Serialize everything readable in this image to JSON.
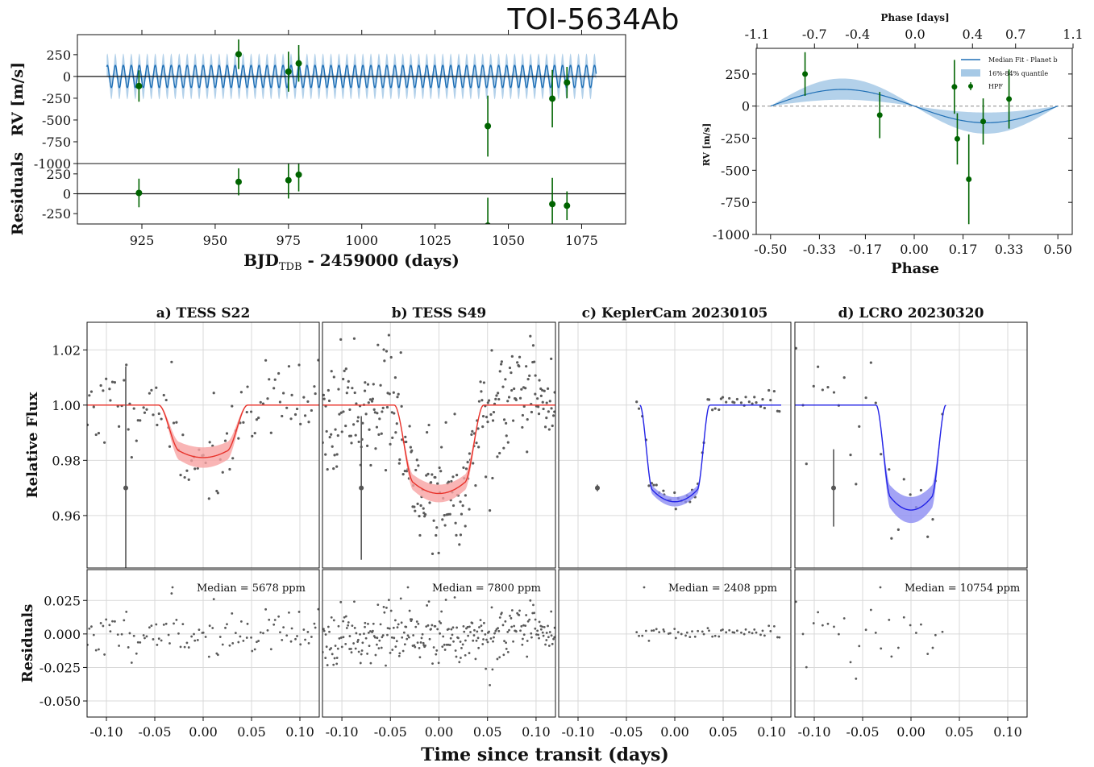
{
  "figure": {
    "title": "TOI-5634Ab"
  },
  "colors": {
    "rv_fit": "#1f6fb5",
    "rv_band": "#a6c9e6",
    "hpf_points": "#006400",
    "tess_fit": "#e8322a",
    "tess_band": "#f7a3a3",
    "ground_fit": "#2222e6",
    "ground_band": "#8c8cf2",
    "phot_points": "#5a5a5a",
    "grid": "#d9d9d9",
    "zero_dash": "#888888"
  },
  "chart_data": [
    {
      "id": "rv_timeseries",
      "type": "scatter",
      "ylabel": "RV [m/s]",
      "xlabel": "BJD_TDB - 2459000 (days)",
      "xlim": [
        903,
        1090
      ],
      "ylim": [
        -1000,
        480
      ],
      "x_ticks": [
        925,
        950,
        975,
        1000,
        1025,
        1050,
        1075
      ],
      "y_ticks": [
        250,
        0,
        -250,
        -500,
        -750,
        -1000
      ],
      "model": {
        "name": "",
        "x_range": [
          913,
          1080
        ],
        "period_days": 2.724,
        "semi_amplitude": 128,
        "band_half_width": 95
      },
      "points": [
        {
          "x": 924,
          "y": -110,
          "err": 180
        },
        {
          "x": 958,
          "y": 255,
          "err": 170
        },
        {
          "x": 975,
          "y": 55,
          "err": 230
        },
        {
          "x": 978.5,
          "y": 150,
          "err": 210
        },
        {
          "x": 1043,
          "y": -570,
          "err": 350
        },
        {
          "x": 1065,
          "y": -255,
          "err": 330
        },
        {
          "x": 1070,
          "y": -70,
          "err": 180
        }
      ]
    },
    {
      "id": "rv_residuals",
      "type": "scatter",
      "ylabel": "Residuals",
      "xlim": [
        903,
        1090
      ],
      "ylim": [
        -380,
        380
      ],
      "x_ticks": [
        925,
        950,
        975,
        1000,
        1025,
        1050,
        1075
      ],
      "y_ticks": [
        250,
        0,
        -250
      ],
      "points": [
        {
          "x": 924,
          "y": 10,
          "err": 180
        },
        {
          "x": 958,
          "y": 150,
          "err": 170
        },
        {
          "x": 975,
          "y": 170,
          "err": 230
        },
        {
          "x": 978.5,
          "y": 240,
          "err": 210
        },
        {
          "x": 1043,
          "y": -400,
          "err": 350
        },
        {
          "x": 1065,
          "y": -130,
          "err": 330
        },
        {
          "x": 1070,
          "y": -150,
          "err": 180
        }
      ]
    },
    {
      "id": "rv_phase",
      "type": "scatter",
      "ylabel": "RV [m/s]",
      "xlabel": "Phase",
      "top_xlabel": "Phase [days]",
      "xlim": [
        -0.55,
        0.55
      ],
      "ylim": [
        -1000,
        450
      ],
      "x_ticks": [
        -0.5,
        -0.33,
        -0.17,
        0.0,
        0.17,
        0.33,
        0.5
      ],
      "x_tick_labels": [
        "-0.50",
        "-0.33",
        "-0.17",
        "0.00",
        "0.17",
        "0.33",
        "0.50"
      ],
      "top_ticks": [
        -1.1,
        -0.7,
        -0.4,
        0.0,
        0.4,
        0.7,
        1.1
      ],
      "top_tick_labels": [
        "-1.1",
        "-0.7",
        "-0.4",
        "0.0",
        "0.4",
        "0.7",
        "1.1"
      ],
      "y_ticks": [
        250,
        0,
        -250,
        -500,
        -750,
        -1000
      ],
      "legend": [
        "Median Fit - Planet b",
        "16%-84% quantile",
        "HPF"
      ],
      "legend_position": "top-right",
      "model": {
        "semi_amplitude": 130,
        "band_upper_amplitude": 215,
        "band_lower_amplitude": 50
      },
      "points": [
        {
          "x": -0.38,
          "y": 250,
          "err": 170
        },
        {
          "x": -0.12,
          "y": -70,
          "err": 180
        },
        {
          "x": 0.14,
          "y": 150,
          "err": 210
        },
        {
          "x": 0.15,
          "y": -255,
          "err": 200
        },
        {
          "x": 0.19,
          "y": -570,
          "err": 350
        },
        {
          "x": 0.24,
          "y": -120,
          "err": 180
        },
        {
          "x": 0.33,
          "y": 55,
          "err": 230
        }
      ]
    },
    {
      "id": "transit_panels",
      "type": "scatter",
      "ylabel_top": "Relative Flux",
      "ylabel_bottom": "Residuals",
      "xlabel": "Time since transit (days)",
      "xlim": [
        -0.12,
        0.12
      ],
      "x_ticks": [
        -0.1,
        -0.05,
        0.0,
        0.05,
        0.1
      ],
      "x_tick_labels": [
        "-0.10",
        "-0.05",
        "0.00",
        "0.05",
        "0.10"
      ],
      "flux_ylim": [
        0.941,
        1.03
      ],
      "flux_ticks": [
        1.02,
        1.0,
        0.98,
        0.96
      ],
      "flux_tick_labels": [
        "1.02",
        "1.00",
        "0.98",
        "0.96"
      ],
      "resid_ylim": [
        -0.062,
        0.048
      ],
      "resid_ticks": [
        0.025,
        0.0,
        -0.025,
        -0.05
      ],
      "resid_tick_labels": [
        "0.025",
        "0.000",
        "-0.025",
        "-0.050"
      ],
      "panels": [
        {
          "title": "a) TESS S22",
          "median_text": "Median =   5678 ppm",
          "fit": "tess",
          "depth": 0.019,
          "half_duration": 0.046,
          "ingress": 0.022,
          "band_half": 0.0035,
          "point_range": [
            -0.12,
            0.12
          ],
          "n_points": 110,
          "scatter": 0.0075,
          "resid_scatter": 0.0085,
          "seed": 11,
          "error_bar": {
            "x": -0.08,
            "y": 0.97,
            "err": 0.044
          }
        },
        {
          "title": "b) TESS S49",
          "median_text": "Median =   7800 ppm",
          "fit": "tess",
          "depth": 0.032,
          "half_duration": 0.046,
          "ingress": 0.02,
          "band_half": 0.003,
          "point_range": [
            -0.12,
            0.12
          ],
          "n_points": 290,
          "scatter": 0.0105,
          "resid_scatter": 0.0105,
          "seed": 23,
          "error_bar": {
            "x": -0.08,
            "y": 0.97,
            "err": 0.026
          }
        },
        {
          "title": "c) KeplerCam 20230105",
          "median_text": "Median =   2408 ppm",
          "fit": "ground",
          "depth": 0.035,
          "half_duration": 0.036,
          "ingress": 0.013,
          "band_half": 0.0015,
          "point_range": [
            -0.04,
            0.11
          ],
          "n_points": 52,
          "scatter": 0.0022,
          "resid_scatter": 0.0025,
          "seed": 37,
          "error_bar": {
            "x": -0.08,
            "y": 0.97,
            "err": 0.0012
          }
        },
        {
          "title": "d) LCRO 20230320",
          "median_text": "Median =   10754 ppm",
          "fit": "ground",
          "depth": 0.038,
          "half_duration": 0.036,
          "ingress": 0.015,
          "band_half": 0.0045,
          "point_range": [
            -0.12,
            0.035
          ],
          "n_points": 28,
          "scatter": 0.012,
          "resid_scatter": 0.014,
          "seed": 53,
          "error_bar": {
            "x": -0.08,
            "y": 0.97,
            "err": 0.014
          }
        }
      ]
    }
  ]
}
